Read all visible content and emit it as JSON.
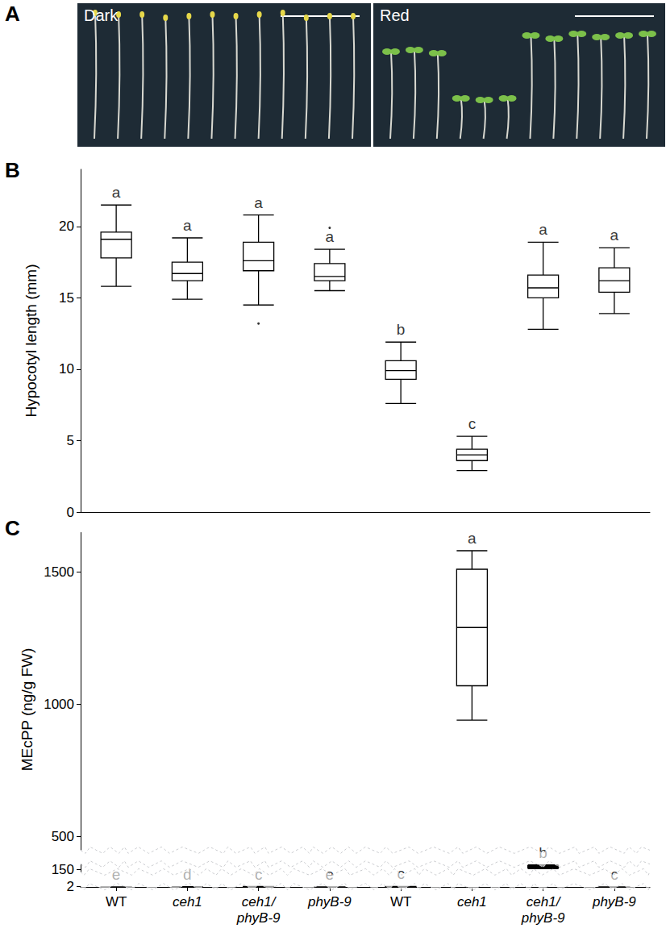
{
  "panels": [
    "A",
    "B",
    "C"
  ],
  "photo": {
    "labels": [
      "Dark",
      "Red"
    ]
  },
  "chart_data": [
    {
      "type": "boxplot",
      "y_label": "Hypocotyl length (mm)",
      "categories": [
        "WT",
        "ceh1",
        "ceh1/phyB-9",
        "phyB-9",
        "WT",
        "ceh1",
        "ceh1/phyB-9",
        "phyB-9"
      ],
      "values": [
        [
          15.8,
          17.8,
          19.1,
          19.6,
          21.5
        ],
        [
          14.9,
          16.2,
          16.7,
          17.5,
          19.2
        ],
        [
          14.5,
          16.9,
          17.6,
          18.9,
          20.8
        ],
        [
          15.5,
          16.2,
          16.5,
          17.4,
          18.4
        ],
        [
          7.6,
          9.3,
          9.9,
          10.6,
          11.9
        ],
        [
          2.9,
          3.6,
          4.0,
          4.4,
          5.3
        ],
        [
          12.8,
          15.0,
          15.7,
          16.6,
          18.9
        ],
        [
          13.9,
          15.4,
          16.2,
          17.1,
          18.5
        ]
      ],
      "outliers": [
        [],
        [],
        [
          13.2
        ],
        [
          19.9
        ],
        [],
        [],
        [],
        []
      ],
      "letters": [
        "a",
        "a",
        "a",
        "a",
        "b",
        "c",
        "a",
        "a"
      ],
      "ylim": [
        0,
        24
      ],
      "yticks": [
        0,
        5,
        10,
        15,
        20
      ],
      "grid": false,
      "tick_labels": "y"
    },
    {
      "type": "boxplot",
      "y_label": "MEcPP (ng/g FW)",
      "categories": [
        "WT",
        "ceh1",
        "ceh1/phyB-9",
        "phyB-9",
        "WT",
        "ceh1",
        "ceh1/phyB-9",
        "phyB-9"
      ],
      "values": [
        [
          0.35,
          0.36,
          0.38,
          0.4,
          0.42
        ],
        [
          0.5,
          0.56,
          0.6,
          0.64,
          0.72
        ],
        [
          1.3,
          1.37,
          1.41,
          1.45,
          1.5
        ],
        [
          0.38,
          0.39,
          0.4,
          0.41,
          0.42
        ],
        [
          1.0,
          1.2,
          1.32,
          1.45,
          1.6
        ],
        [
          940,
          1070,
          1290,
          1510,
          1580
        ],
        [
          153,
          156,
          160,
          164,
          167
        ],
        [
          0.04,
          0.1,
          0.2,
          0.68,
          0.68
        ]
      ],
      "outliers": [
        [],
        [],
        [],
        [],
        [],
        [],
        [],
        []
      ],
      "letters": [
        "e",
        "d",
        "c",
        "e",
        "c",
        "a",
        "b",
        "c"
      ],
      "ylim": [
        0,
        1650
      ],
      "yticks": [
        0,
        2,
        150,
        500,
        1000,
        1500
      ],
      "ybreaks": [
        [
          2.6,
          140
        ],
        [
          170,
          450
        ]
      ],
      "grid": false
    }
  ]
}
